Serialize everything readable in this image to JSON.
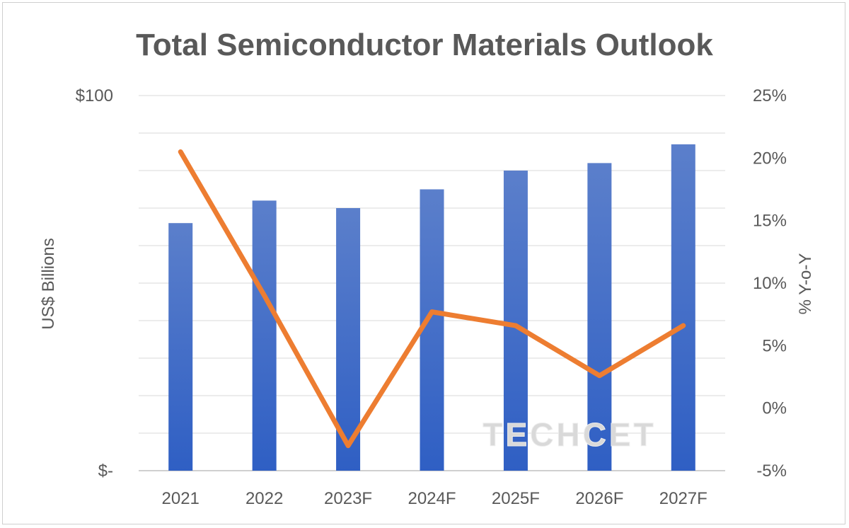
{
  "chart_data": {
    "type": "bar",
    "title": "Total Semiconductor Materials Outlook",
    "categories": [
      "2021",
      "2022",
      "2023F",
      "2024F",
      "2025F",
      "2026F",
      "2027F"
    ],
    "ylabel": "US$ Billions",
    "ylabel_right": "% Y-o-Y",
    "ylim": [
      0,
      100
    ],
    "ylim_right": [
      -5,
      25
    ],
    "y_ticks": [
      "$-",
      "$100"
    ],
    "y_ticks_right": [
      "-5%",
      "0%",
      "5%",
      "10%",
      "15%",
      "20%",
      "25%"
    ],
    "grid": true,
    "series": [
      {
        "values": [
          66,
          72,
          70,
          75,
          80,
          82,
          87
        ],
        "type": "bar",
        "color": "#4472C4",
        "axis": "left"
      },
      {
        "values": [
          20.5,
          9.0,
          -3.0,
          7.7,
          6.6,
          2.6,
          6.6
        ],
        "type": "line",
        "color": "#ED7D31",
        "axis": "right"
      }
    ],
    "watermark": "TECHCET"
  }
}
